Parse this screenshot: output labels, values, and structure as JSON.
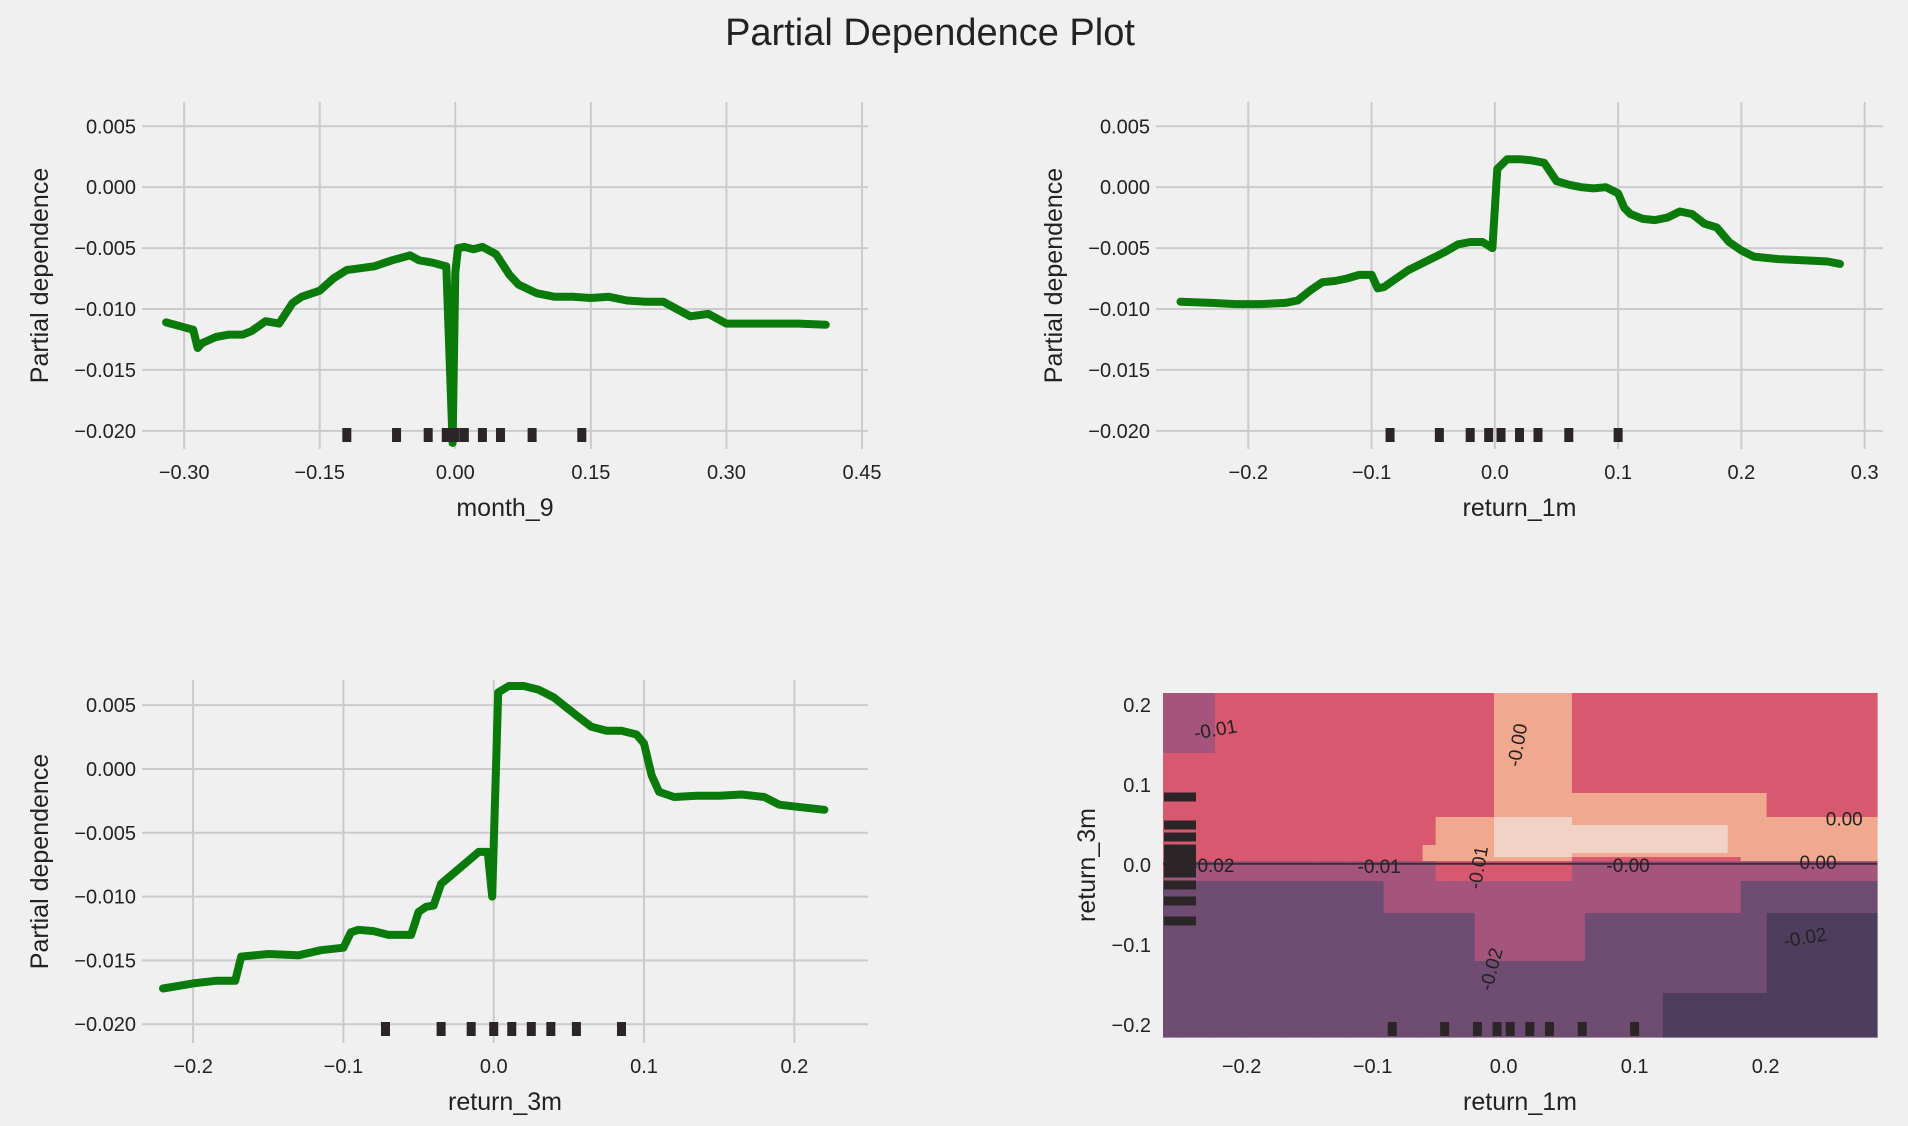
{
  "figure": {
    "title": "Partial Dependence Plot"
  },
  "colors": {
    "background": "#f0f0f0",
    "grid": "#cbcbcb",
    "line": "#0a7a0a",
    "rug": "#2b2528",
    "text": "#222222"
  },
  "chart_data": [
    {
      "type": "line",
      "xlabel": "month_9",
      "ylabel": "Partial dependence",
      "xlim": [
        -0.34,
        0.45
      ],
      "ylim": [
        -0.021,
        0.0065
      ],
      "xticks": [
        -0.3,
        -0.15,
        0.0,
        0.15,
        0.3,
        0.45
      ],
      "xtick_labels": [
        "−0.30",
        "−0.15",
        "0.00",
        "0.15",
        "0.30",
        "0.45"
      ],
      "yticks": [
        0.005,
        0.0,
        -0.005,
        -0.01,
        -0.015,
        -0.02
      ],
      "ytick_labels": [
        "0.005",
        "0.000",
        "−0.005",
        "−0.010",
        "−0.015",
        "−0.020"
      ],
      "grid": true,
      "x": [
        -0.32,
        -0.3,
        -0.29,
        -0.285,
        -0.28,
        -0.265,
        -0.25,
        -0.235,
        -0.225,
        -0.21,
        -0.195,
        -0.18,
        -0.17,
        -0.15,
        -0.135,
        -0.12,
        -0.11,
        -0.09,
        -0.07,
        -0.05,
        -0.04,
        -0.025,
        -0.01,
        -0.003,
        0.0,
        0.003,
        0.01,
        0.02,
        0.03,
        0.045,
        0.06,
        0.07,
        0.09,
        0.11,
        0.13,
        0.15,
        0.17,
        0.19,
        0.21,
        0.23,
        0.26,
        0.28,
        0.3,
        0.32,
        0.35,
        0.38,
        0.41
      ],
      "y": [
        -0.0111,
        -0.0115,
        -0.0117,
        -0.0132,
        -0.0128,
        -0.0123,
        -0.0121,
        -0.0121,
        -0.0118,
        -0.011,
        -0.0112,
        -0.0095,
        -0.009,
        -0.0085,
        -0.0075,
        -0.0068,
        -0.0067,
        -0.0065,
        -0.006,
        -0.0056,
        -0.006,
        -0.0062,
        -0.0065,
        -0.021,
        -0.007,
        -0.005,
        -0.0049,
        -0.0051,
        -0.0049,
        -0.0055,
        -0.0072,
        -0.008,
        -0.0087,
        -0.009,
        -0.009,
        -0.0091,
        -0.009,
        -0.0093,
        -0.0094,
        -0.0094,
        -0.0106,
        -0.0104,
        -0.0112,
        -0.0112,
        -0.0112,
        -0.0112,
        -0.0113
      ],
      "rug": [
        -0.12,
        -0.065,
        -0.03,
        -0.01,
        0.0,
        0.01,
        0.03,
        0.05,
        0.085,
        0.14
      ]
    },
    {
      "type": "line",
      "xlabel": "return_1m",
      "ylabel": "Partial dependence",
      "xlim": [
        -0.27,
        0.31
      ],
      "ylim": [
        -0.021,
        0.0065
      ],
      "xticks": [
        -0.2,
        -0.1,
        0.0,
        0.1,
        0.2,
        0.3
      ],
      "xtick_labels": [
        "−0.2",
        "−0.1",
        "0.0",
        "0.1",
        "0.2",
        "0.3"
      ],
      "yticks": [
        0.005,
        0.0,
        -0.005,
        -0.01,
        -0.015,
        -0.02
      ],
      "ytick_labels": [
        "0.005",
        "0.000",
        "−0.005",
        "−0.010",
        "−0.015",
        "−0.020"
      ],
      "grid": true,
      "x": [
        -0.255,
        -0.23,
        -0.21,
        -0.19,
        -0.17,
        -0.16,
        -0.15,
        -0.14,
        -0.13,
        -0.12,
        -0.11,
        -0.1,
        -0.095,
        -0.09,
        -0.08,
        -0.07,
        -0.06,
        -0.05,
        -0.04,
        -0.03,
        -0.02,
        -0.01,
        -0.002,
        0.002,
        0.01,
        0.02,
        0.03,
        0.04,
        0.05,
        0.06,
        0.07,
        0.08,
        0.09,
        0.1,
        0.105,
        0.11,
        0.12,
        0.13,
        0.14,
        0.15,
        0.16,
        0.17,
        0.18,
        0.19,
        0.2,
        0.21,
        0.23,
        0.25,
        0.27,
        0.28
      ],
      "y": [
        -0.0094,
        -0.0095,
        -0.0096,
        -0.0096,
        -0.0095,
        -0.0093,
        -0.0085,
        -0.0078,
        -0.0077,
        -0.0075,
        -0.0072,
        -0.0072,
        -0.0083,
        -0.0082,
        -0.0075,
        -0.0068,
        -0.0063,
        -0.0058,
        -0.0053,
        -0.0047,
        -0.0045,
        -0.0045,
        -0.005,
        0.0015,
        0.0023,
        0.0023,
        0.0022,
        0.002,
        0.0005,
        0.0002,
        0.0,
        -0.0001,
        0.0,
        -0.0005,
        -0.0017,
        -0.0022,
        -0.0026,
        -0.0027,
        -0.0025,
        -0.002,
        -0.0022,
        -0.003,
        -0.0033,
        -0.0045,
        -0.0052,
        -0.0057,
        -0.0059,
        -0.006,
        -0.0061,
        -0.0063
      ],
      "rug": [
        -0.085,
        -0.045,
        -0.02,
        -0.005,
        0.005,
        0.02,
        0.035,
        0.06,
        0.1
      ]
    },
    {
      "type": "line",
      "xlabel": "return_3m",
      "ylabel": "Partial dependence",
      "xlim": [
        -0.23,
        0.245
      ],
      "ylim": [
        -0.021,
        0.0065
      ],
      "xticks": [
        -0.2,
        -0.1,
        0.0,
        0.1,
        0.2
      ],
      "xtick_labels": [
        "−0.2",
        "−0.1",
        "0.0",
        "0.1",
        "0.2"
      ],
      "yticks": [
        0.005,
        0.0,
        -0.005,
        -0.01,
        -0.015,
        -0.02
      ],
      "ytick_labels": [
        "0.005",
        "0.000",
        "−0.005",
        "−0.010",
        "−0.015",
        "−0.020"
      ],
      "grid": true,
      "x": [
        -0.22,
        -0.2,
        -0.185,
        -0.172,
        -0.168,
        -0.15,
        -0.13,
        -0.115,
        -0.1,
        -0.095,
        -0.09,
        -0.08,
        -0.07,
        -0.055,
        -0.05,
        -0.045,
        -0.04,
        -0.035,
        -0.03,
        -0.02,
        -0.01,
        -0.004,
        -0.001,
        0.003,
        0.01,
        0.02,
        0.03,
        0.04,
        0.055,
        0.065,
        0.075,
        0.085,
        0.095,
        0.1,
        0.105,
        0.11,
        0.12,
        0.135,
        0.15,
        0.165,
        0.18,
        0.19,
        0.205,
        0.22
      ],
      "y": [
        -0.0172,
        -0.0168,
        -0.0166,
        -0.0166,
        -0.0147,
        -0.0145,
        -0.0146,
        -0.0142,
        -0.014,
        -0.0128,
        -0.0126,
        -0.0127,
        -0.013,
        -0.013,
        -0.0112,
        -0.0108,
        -0.0107,
        -0.009,
        -0.0085,
        -0.0075,
        -0.0065,
        -0.0065,
        -0.01,
        0.006,
        0.0065,
        0.0065,
        0.0062,
        0.0056,
        0.0042,
        0.0033,
        0.003,
        0.003,
        0.0027,
        0.002,
        -0.0005,
        -0.0018,
        -0.0022,
        -0.0021,
        -0.0021,
        -0.002,
        -0.0022,
        -0.0028,
        -0.003,
        -0.0032
      ],
      "rug": [
        -0.072,
        -0.035,
        -0.015,
        0.0,
        0.012,
        0.025,
        0.038,
        0.055,
        0.085
      ]
    },
    {
      "type": "heatmap",
      "xlabel": "return_1m",
      "ylabel": "return_3m",
      "xlim": [
        -0.26,
        0.285
      ],
      "ylim": [
        -0.215,
        0.215
      ],
      "xticks": [
        -0.2,
        -0.1,
        0.0,
        0.1,
        0.2
      ],
      "xtick_labels": [
        "−0.2",
        "−0.1",
        "0.0",
        "0.1",
        "0.2"
      ],
      "yticks": [
        0.2,
        0.1,
        0.0,
        -0.1,
        -0.2
      ],
      "ytick_labels": [
        "0.2",
        "0.1",
        "0.0",
        "−0.1",
        "−0.2"
      ],
      "levels": [
        {
          "value": -0.03,
          "color": "#4e3d5c"
        },
        {
          "value": -0.02,
          "color": "#6f4d72"
        },
        {
          "value": -0.01,
          "color": "#a5547c"
        },
        {
          "value": 0.0,
          "color": "#d8596f"
        },
        {
          "value": 0.01,
          "color": "#f0a88e"
        },
        {
          "value": 0.02,
          "color": "#f1d3c6"
        }
      ],
      "contour_labels": [
        {
          "text": "-0.01",
          "x": -0.22,
          "y": 0.17,
          "rot": -10
        },
        {
          "text": "-0.00",
          "x": 0.01,
          "y": 0.15,
          "rot": -80
        },
        {
          "text": "0.00",
          "x": 0.26,
          "y": 0.058,
          "rot": 0
        },
        {
          "text": "-0.02",
          "x": -0.222,
          "y": 0.0,
          "rot": 0
        },
        {
          "text": "-0.01",
          "x": -0.095,
          "y": -0.001,
          "rot": 0
        },
        {
          "text": "-0.01",
          "x": -0.02,
          "y": -0.003,
          "rot": -80
        },
        {
          "text": "-0.00",
          "x": 0.095,
          "y": 0.0,
          "rot": 0
        },
        {
          "text": "0.00",
          "x": 0.24,
          "y": 0.004,
          "rot": 0
        },
        {
          "text": "-0.02",
          "x": -0.01,
          "y": -0.13,
          "rot": -75
        },
        {
          "text": "-0.02",
          "x": 0.23,
          "y": -0.09,
          "rot": -10
        }
      ],
      "rug_x": [
        -0.085,
        -0.045,
        -0.02,
        -0.005,
        0.005,
        0.02,
        0.035,
        0.06,
        0.1
      ],
      "rug_y": [
        0.085,
        0.05,
        0.035,
        0.02,
        0.01,
        0.0,
        -0.01,
        -0.025,
        -0.045,
        -0.07
      ]
    }
  ]
}
